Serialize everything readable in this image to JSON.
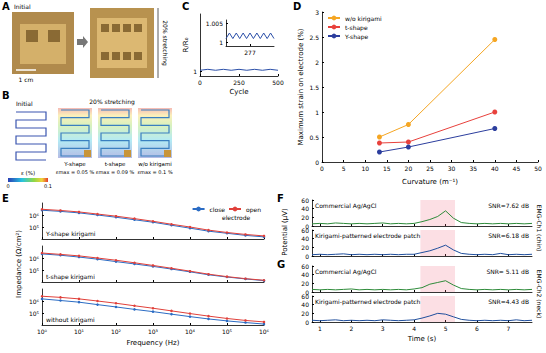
{
  "panels": {
    "A": {
      "panel": "A",
      "initial": "Initial",
      "scale": "1 cm",
      "stretch": "20% stretching"
    },
    "B": {
      "panel": "B",
      "initial": "Initial",
      "stretch": "20% stretching",
      "colorbar": {
        "label": "ε (%)",
        "range": [
          0,
          0.1
        ],
        "ticks": [
          0,
          0.1
        ]
      },
      "designs": [
        {
          "name": "Y-shape",
          "strain": "εmax = 0.05 %"
        },
        {
          "name": "t-shape",
          "strain": "εmax = 0.09 %"
        },
        {
          "name": "w/o kirigami",
          "strain": "εmax = 0.1 %"
        }
      ]
    }
  },
  "chart_data": [
    {
      "panel": "C",
      "type": "line",
      "xlabel": "Cycle",
      "ylabel": "R/R₀",
      "x": [
        0,
        50,
        100,
        150,
        200,
        250,
        300,
        350,
        400,
        450,
        500
      ],
      "values": [
        1.001,
        1.002,
        1.001,
        1.002,
        1.001,
        1.002,
        1.001,
        1.002,
        1.001,
        1.002,
        1.001
      ],
      "color": "#2b4fa8",
      "xlim": [
        0,
        500
      ],
      "xticks": [
        0,
        250,
        500
      ],
      "ylim": [
        0.995,
        1.06
      ],
      "yticks": [
        1
      ],
      "grid": false
    },
    {
      "type": "line",
      "x": [
        270,
        271,
        272,
        273,
        274,
        275,
        276,
        277,
        278,
        279,
        280,
        281,
        282,
        283,
        284
      ],
      "values": [
        1.001,
        1.0025,
        1.001,
        1.0025,
        1.001,
        1.0025,
        1.001,
        1.0025,
        1.001,
        1.0025,
        1.001,
        1.0025,
        1.001,
        1.0025,
        1.001
      ],
      "color": "#2b4fa8",
      "xlim": [
        270,
        284
      ],
      "xticks": [
        277
      ],
      "ylim": [
        0.999,
        1.006
      ],
      "yticks": [
        1,
        1.005
      ],
      "grid": false
    },
    {
      "panel": "D",
      "type": "line",
      "xlabel": "Curvature (m⁻¹)",
      "ylabel": "Maximum strain on electrode (%)",
      "x": [
        13.3,
        20,
        40
      ],
      "marker": "circle",
      "legend": "upper left",
      "grid": false,
      "series": [
        {
          "name": "w/o kirigami",
          "color": "#f5a623",
          "values": [
            0.5,
            0.75,
            2.45
          ]
        },
        {
          "name": "t-shape",
          "color": "#e8413c",
          "values": [
            0.38,
            0.4,
            1.0
          ]
        },
        {
          "name": "Y-shape",
          "color": "#2c3e9e",
          "values": [
            0.2,
            0.3,
            0.67
          ]
        }
      ],
      "xlim": [
        0,
        50
      ],
      "xticks": [
        0,
        5,
        10,
        15,
        20,
        25,
        30,
        35,
        40,
        45,
        50
      ],
      "ylim": [
        0,
        3
      ],
      "yticks": [
        0,
        0.5,
        1,
        1.5,
        2,
        2.5,
        3
      ]
    },
    {
      "panel": "E",
      "type": "line",
      "log": true,
      "grid": false,
      "marker": "circle",
      "legend": "upper right",
      "sample": "Y-shape kirigami",
      "annotation": "electrode",
      "tick_labels": "y",
      "x": [
        1,
        3.16,
        10,
        31.6,
        100,
        316,
        1000,
        3160,
        10000,
        31600,
        100000,
        316000,
        1000000
      ],
      "series": [
        {
          "name": "close",
          "color": "#2b6cc4",
          "values": [
            2500000,
            2000000,
            1500000,
            1000000,
            650000,
            400000,
            250000,
            140000,
            80000,
            45000,
            30000,
            20000,
            15000
          ]
        },
        {
          "name": "open",
          "color": "#e0403a",
          "values": [
            3000000,
            2400000,
            1800000,
            1200000,
            800000,
            500000,
            300000,
            170000,
            100000,
            55000,
            35000,
            24000,
            18000
          ]
        }
      ],
      "xlim": [
        1,
        1000000
      ],
      "xticks": [
        {
          "value": 1,
          "label": "10⁰"
        },
        {
          "value": 10,
          "label": "10¹"
        },
        {
          "value": 100,
          "label": "10²"
        },
        {
          "value": 1000,
          "label": "10³"
        },
        {
          "value": 10000,
          "label": "10⁴"
        },
        {
          "value": 100000,
          "label": "10⁵"
        },
        {
          "value": 1000000,
          "label": "10⁶"
        }
      ],
      "ylim": [
        10000,
        10000000
      ],
      "yticks": [
        {
          "value": 100000,
          "label": "10⁵"
        },
        {
          "value": 1000000,
          "label": "10⁶"
        }
      ]
    },
    {
      "type": "line",
      "log": true,
      "grid": false,
      "marker": "circle",
      "sample": "t-shape kirigami",
      "tick_labels": "y",
      "ylabel": "Impedance (Ω/cm²)",
      "x": [
        1,
        3.16,
        10,
        31.6,
        100,
        316,
        1000,
        3160,
        10000,
        31600,
        100000,
        316000,
        1000000
      ],
      "series": [
        {
          "name": "close",
          "color": "#2b6cc4",
          "values": [
            2200000,
            1700000,
            1200000,
            800000,
            500000,
            320000,
            200000,
            120000,
            70000,
            40000,
            26000,
            18000,
            13000
          ]
        },
        {
          "name": "open",
          "color": "#e0403a",
          "values": [
            2600000,
            2000000,
            1500000,
            1000000,
            650000,
            400000,
            240000,
            140000,
            80000,
            45000,
            28000,
            19000,
            14000
          ]
        }
      ],
      "xlim": [
        1,
        1000000
      ],
      "xticks": [
        {
          "value": 1,
          "label": "10⁰"
        },
        {
          "value": 10,
          "label": "10¹"
        },
        {
          "value": 100,
          "label": "10²"
        },
        {
          "value": 1000,
          "label": "10³"
        },
        {
          "value": 10000,
          "label": "10⁴"
        },
        {
          "value": 100000,
          "label": "10⁵"
        },
        {
          "value": 1000000,
          "label": "10⁶"
        }
      ],
      "ylim": [
        10000,
        10000000
      ],
      "yticks": [
        {
          "value": 100000,
          "label": "10⁵"
        },
        {
          "value": 1000000,
          "label": "10⁶"
        }
      ]
    },
    {
      "type": "line",
      "log": true,
      "grid": false,
      "marker": "circle",
      "sample": "without kirigami",
      "xlabel": "Frequency (Hz)",
      "x": [
        1,
        3.16,
        10,
        31.6,
        100,
        316,
        1000,
        3160,
        10000,
        31600,
        100000,
        316000,
        1000000
      ],
      "series": [
        {
          "name": "close",
          "color": "#2b6cc4",
          "values": [
            1500000,
            1100000,
            800000,
            500000,
            320000,
            200000,
            130000,
            80000,
            50000,
            32000,
            22000,
            16000,
            12000
          ]
        },
        {
          "name": "open",
          "color": "#e0403a",
          "values": [
            2500000,
            2000000,
            1500000,
            1000000,
            650000,
            400000,
            250000,
            150000,
            90000,
            55000,
            35000,
            24000,
            18000
          ]
        }
      ],
      "xlim": [
        1,
        1000000
      ],
      "xticks": [
        {
          "value": 1,
          "label": "10⁰"
        },
        {
          "value": 10,
          "label": "10¹"
        },
        {
          "value": 100,
          "label": "10²"
        },
        {
          "value": 1000,
          "label": "10³"
        },
        {
          "value": 10000,
          "label": "10⁴"
        },
        {
          "value": 100000,
          "label": "10⁵"
        },
        {
          "value": 1000000,
          "label": "10⁶"
        }
      ],
      "ylim": [
        10000,
        10000000
      ],
      "yticks": [
        {
          "value": 100000,
          "label": "10⁵"
        },
        {
          "value": 1000000,
          "label": "10⁶"
        }
      ]
    },
    {
      "panel": "F",
      "type": "line",
      "grid": false,
      "tick_labels": "y",
      "ylabel": "Potential (μV)",
      "trace_label": "Commercial Ag/AgCl",
      "snr": "SNR=7.62 dB",
      "channel": "EMG-Ch1 (chin)",
      "highlight": [
        4.2,
        5.3
      ],
      "x": [
        0.75,
        1,
        1.25,
        1.5,
        1.75,
        2,
        2.25,
        2.5,
        2.75,
        3,
        3.25,
        3.5,
        3.75,
        4,
        4.25,
        4.5,
        4.75,
        5,
        5.25,
        5.5,
        5.75,
        6,
        6.25,
        6.5,
        6.75,
        7,
        7.25,
        7.5,
        7.75
      ],
      "values": [
        5,
        6,
        5,
        7,
        6,
        5,
        6,
        5,
        6,
        7,
        5,
        6,
        5,
        6,
        10,
        15,
        22,
        35,
        18,
        8,
        6,
        5,
        6,
        5,
        6,
        5,
        6,
        5,
        6
      ],
      "color": "#2e8b3a",
      "xlim": [
        0.75,
        7.75
      ],
      "xticks": [
        1,
        2,
        3,
        4,
        5,
        6,
        7
      ],
      "ylim": [
        0,
        60
      ],
      "yticks": [
        0,
        20,
        40,
        60
      ]
    },
    {
      "type": "line",
      "grid": false,
      "tick_labels": "y",
      "trace_label": "Kirigami-patterned electrode patch",
      "snr": "SNR=6.18 dB",
      "highlight": [
        4.2,
        5.3
      ],
      "x": [
        0.75,
        1,
        1.25,
        1.5,
        1.75,
        2,
        2.25,
        2.5,
        2.75,
        3,
        3.25,
        3.5,
        3.75,
        4,
        4.25,
        4.5,
        4.75,
        5,
        5.25,
        5.5,
        5.75,
        6,
        6.25,
        6.5,
        6.75,
        7,
        7.25,
        7.5,
        7.75
      ],
      "values": [
        3,
        4,
        3,
        4,
        5,
        3,
        4,
        3,
        4,
        3,
        4,
        3,
        4,
        4,
        8,
        12,
        18,
        25,
        14,
        6,
        4,
        3,
        4,
        3,
        6,
        3,
        4,
        3,
        4
      ],
      "color": "#1f4e9c",
      "xlim": [
        0.75,
        7.75
      ],
      "xticks": [
        1,
        2,
        3,
        4,
        5,
        6,
        7
      ],
      "ylim": [
        0,
        60
      ],
      "yticks": [
        0,
        20,
        40,
        60
      ]
    },
    {
      "panel": "G",
      "type": "line",
      "grid": false,
      "tick_labels": "y",
      "trace_label": "Commercial Ag/AgCl",
      "snr": "SNR= 5.11 dB",
      "channel": "EMG-Ch2 (neck)",
      "highlight": [
        4.2,
        5.3
      ],
      "x": [
        0.75,
        1,
        1.25,
        1.5,
        1.75,
        2,
        2.25,
        2.5,
        2.75,
        3,
        3.25,
        3.5,
        3.75,
        4,
        4.25,
        4.5,
        4.75,
        5,
        5.25,
        5.5,
        5.75,
        6,
        6.25,
        6.5,
        6.75,
        7,
        7.25,
        7.5,
        7.75
      ],
      "values": [
        6,
        5,
        6,
        5,
        6,
        7,
        5,
        6,
        5,
        6,
        5,
        6,
        5,
        7,
        10,
        18,
        22,
        26,
        16,
        8,
        6,
        5,
        6,
        5,
        6,
        5,
        6,
        5,
        6
      ],
      "color": "#2e8b3a",
      "xlim": [
        0.75,
        7.75
      ],
      "xticks": [
        1,
        2,
        3,
        4,
        5,
        6,
        7
      ],
      "ylim": [
        0,
        60
      ],
      "yticks": [
        0,
        20,
        40,
        60
      ]
    },
    {
      "type": "line",
      "grid": false,
      "xlabel": "Time (s)",
      "trace_label": "Kirigami-patterned electrode patch",
      "snr": "SNR=4.43 dB",
      "highlight": [
        4.2,
        5.3
      ],
      "x": [
        0.75,
        1,
        1.25,
        1.5,
        1.75,
        2,
        2.25,
        2.5,
        2.75,
        3,
        3.25,
        3.5,
        3.75,
        4,
        4.25,
        4.5,
        4.75,
        5,
        5.25,
        5.5,
        5.75,
        6,
        6.25,
        6.5,
        6.75,
        7,
        7.25,
        7.5,
        7.75
      ],
      "values": [
        4,
        3,
        4,
        5,
        3,
        4,
        3,
        4,
        3,
        5,
        4,
        3,
        4,
        5,
        9,
        14,
        20,
        18,
        12,
        6,
        4,
        3,
        4,
        3,
        4,
        3,
        5,
        3,
        4
      ],
      "color": "#1f4e9c",
      "xlim": [
        0.75,
        7.75
      ],
      "xticks": [
        1,
        2,
        3,
        4,
        5,
        6,
        7
      ],
      "ylim": [
        0,
        60
      ],
      "yticks": [
        0,
        20,
        40,
        60
      ]
    }
  ]
}
